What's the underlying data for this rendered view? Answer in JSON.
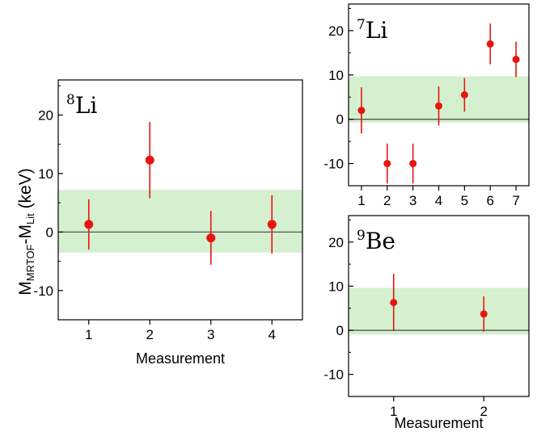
{
  "colors": {
    "band": "#d4f0cf",
    "points": "#e8150f",
    "zero_line": "#555555",
    "frame": "#000000"
  },
  "ylabel": {
    "main": "M",
    "sub1": "MRTOF",
    "sep": "-M",
    "sub2": "Lit",
    "unit": " (keV)"
  },
  "chart_data": [
    {
      "id": "li8",
      "type": "scatter",
      "title_mass": "8",
      "title_elem": "Li",
      "xlabel": "Measurement",
      "xlim": [
        0.5,
        4.5
      ],
      "ylim": [
        -15,
        26
      ],
      "xticks": [
        1,
        2,
        3,
        4
      ],
      "yticks": [
        -10,
        0,
        10,
        20
      ],
      "band": [
        -3.5,
        7.2
      ],
      "x": [
        1,
        2,
        3,
        4
      ],
      "y": [
        1.3,
        12.3,
        -1.0,
        1.3
      ],
      "yerr": [
        4.3,
        6.5,
        4.6,
        5.0
      ]
    },
    {
      "id": "li7",
      "type": "scatter",
      "title_mass": "7",
      "title_elem": "Li",
      "xlabel": "",
      "xlim": [
        0.5,
        7.5
      ],
      "ylim": [
        -15,
        26
      ],
      "xticks": [
        1,
        2,
        3,
        4,
        5,
        6,
        7
      ],
      "yticks": [
        -10,
        0,
        10,
        20
      ],
      "band": [
        -0.8,
        9.7
      ],
      "x": [
        1,
        2,
        3,
        4,
        5,
        6,
        7
      ],
      "y": [
        2.0,
        -10.0,
        -10.0,
        3.0,
        5.5,
        17.0,
        13.5
      ],
      "yerr": [
        5.2,
        4.5,
        4.5,
        4.4,
        3.8,
        4.6,
        4.0
      ]
    },
    {
      "id": "be9",
      "type": "scatter",
      "title_mass": "9",
      "title_elem": "Be",
      "xlabel": "Measurement",
      "xlim": [
        0.5,
        2.5
      ],
      "ylim": [
        -15,
        26
      ],
      "xticks": [
        1,
        2
      ],
      "yticks": [
        -10,
        0,
        10,
        20
      ],
      "band": [
        -1.0,
        9.6
      ],
      "x": [
        1,
        2
      ],
      "y": [
        6.3,
        3.7
      ],
      "yerr": [
        6.5,
        4.0
      ]
    }
  ]
}
